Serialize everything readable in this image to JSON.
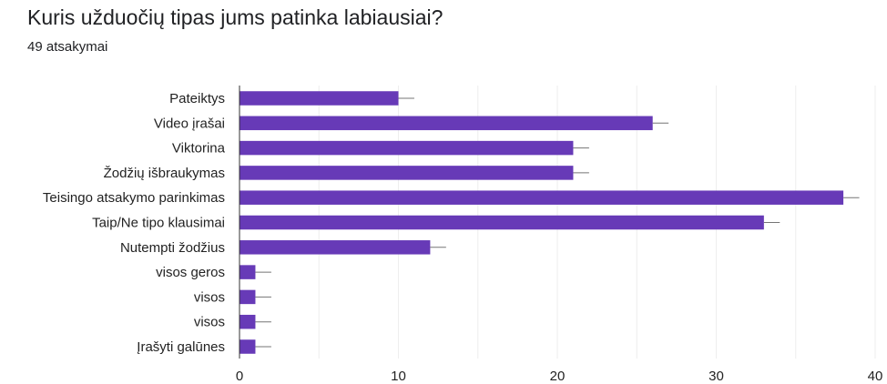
{
  "header": {
    "title": "Kuris užduočių tipas jums patinka labiausiai?",
    "response_count": "49 atsakymai"
  },
  "chart_data": {
    "type": "bar",
    "orientation": "horizontal",
    "categories": [
      "Pateiktys",
      "Video įrašai",
      "Viktorina",
      "Žodžių išbraukymas",
      "Teisingo atsakymo parinkimas",
      "Taip/Ne tipo klausimai",
      "Nutempti žodžius",
      "visos geros",
      "visos",
      "visos",
      "Įrašyti galūnes"
    ],
    "values": [
      10,
      26,
      21,
      21,
      38,
      33,
      12,
      1,
      1,
      1,
      1
    ],
    "error_whisker": 1,
    "xlim": [
      0,
      40
    ],
    "x_ticks": [
      0,
      10,
      20,
      30,
      40
    ],
    "grid": true,
    "bar_color": "#673ab7",
    "grid_color": "#eeeeee",
    "axis_color": "#333333",
    "whisker_color": "#757575"
  }
}
